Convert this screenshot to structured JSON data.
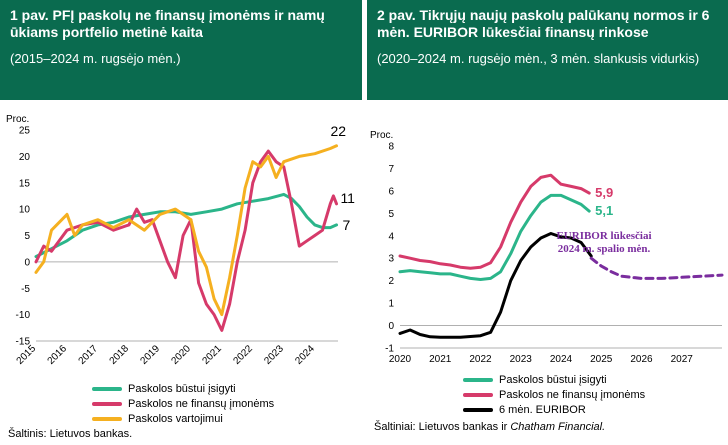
{
  "left_panel": {
    "title": "1 pav. PFĮ paskolų ne finansų įmonėms ir namų ūkiams portfelio metinė kaita",
    "subtitle": "(2015–2024 m. rugsėjo mėn.)",
    "source": "Šaltinis: Lietuvos bankas."
  },
  "right_panel": {
    "title": "2 pav. Tikrųjų naujų paskolų palūkanų normos ir 6 mėn. EURIBOR lūkesčiai finansų rinkose",
    "subtitle": "(2020–2024 m. rugsėjo mėn., 3 mėn. slankusis vidurkis)",
    "source_prefix": "Šaltiniai: Lietuvos bankas ir ",
    "source_italic": "Chatham Financial."
  },
  "chart_data": [
    {
      "type": "line",
      "ylabel": "Proc.",
      "ylim": [
        -15,
        25
      ],
      "yticks": [
        -15,
        -10,
        -5,
        0,
        5,
        10,
        15,
        20,
        25
      ],
      "xlim": [
        2015,
        2024.75
      ],
      "xticks": [
        2015,
        2016,
        2017,
        2018,
        2019,
        2020,
        2021,
        2022,
        2023,
        2024
      ],
      "series": [
        {
          "name": "Paskolos būstui įsigyti",
          "color": "#2bb58a",
          "end_label": "7",
          "x": [
            2015,
            2015.5,
            2016,
            2016.5,
            2017,
            2017.5,
            2018,
            2018.5,
            2019,
            2019.5,
            2020,
            2020.5,
            2021,
            2021.5,
            2022,
            2022.5,
            2023,
            2023.25,
            2023.5,
            2023.75,
            2024,
            2024.25,
            2024.5,
            2024.7
          ],
          "values": [
            1,
            2.5,
            4,
            6,
            7,
            7.5,
            8.5,
            9,
            9.5,
            9.5,
            9,
            9.5,
            10,
            11,
            11.5,
            12,
            12.8,
            12,
            10.5,
            8.5,
            7,
            6.5,
            6.5,
            7
          ]
        },
        {
          "name": "Paskolos ne finansų įmonėms",
          "color": "#d63a6a",
          "end_label": "11",
          "x": [
            2015,
            2015.25,
            2015.5,
            2015.75,
            2016,
            2016.5,
            2017,
            2017.5,
            2018,
            2018.25,
            2018.5,
            2018.75,
            2019,
            2019.25,
            2019.5,
            2019.75,
            2020,
            2020.25,
            2020.5,
            2020.75,
            2021,
            2021.25,
            2021.5,
            2021.75,
            2022,
            2022.25,
            2022.5,
            2022.75,
            2023,
            2023.25,
            2023.5,
            2023.75,
            2024,
            2024.25,
            2024.5,
            2024.6,
            2024.7
          ],
          "values": [
            0,
            3,
            2,
            4,
            6,
            7,
            7.5,
            6,
            7,
            10,
            7.5,
            8,
            4,
            0,
            -3,
            5,
            8,
            -4,
            -8,
            -10,
            -13,
            -8,
            0,
            6,
            15,
            19,
            21,
            19,
            18,
            11,
            3,
            4,
            5,
            6,
            11,
            12.5,
            11
          ]
        },
        {
          "name": "Paskolos vartojimui",
          "color": "#f5b020",
          "end_label": "22",
          "x": [
            2015,
            2015.25,
            2015.5,
            2016,
            2016.25,
            2016.5,
            2017,
            2017.5,
            2018,
            2018.5,
            2019,
            2019.5,
            2020,
            2020.25,
            2020.5,
            2020.75,
            2021,
            2021.25,
            2021.5,
            2021.75,
            2022,
            2022.25,
            2022.5,
            2022.75,
            2023,
            2023.5,
            2024,
            2024.5,
            2024.7
          ],
          "values": [
            -2,
            0,
            6,
            9,
            5,
            7,
            8,
            6.5,
            8,
            6,
            9,
            10,
            8,
            2,
            -1,
            -7,
            -10,
            -3,
            5,
            14,
            19,
            18,
            20,
            16,
            19,
            20,
            20.5,
            21.5,
            22
          ]
        }
      ]
    },
    {
      "type": "line",
      "ylabel": "Proc.",
      "ylim": [
        -1,
        8
      ],
      "yticks": [
        -1,
        0,
        1,
        2,
        3,
        4,
        5,
        6,
        7,
        8
      ],
      "xlim": [
        2020,
        2028
      ],
      "xticks": [
        2020,
        2021,
        2022,
        2023,
        2024,
        2025,
        2026,
        2027
      ],
      "annotation": "EURIBOR lūkesčiai 2024 m. spalio mėn.",
      "series": [
        {
          "name": "Paskolos būstui įsigyti",
          "color": "#2bb58a",
          "end_label": "5,1",
          "x": [
            2020,
            2020.25,
            2020.5,
            2020.75,
            2021,
            2021.25,
            2021.5,
            2021.75,
            2022,
            2022.25,
            2022.5,
            2022.75,
            2023,
            2023.25,
            2023.5,
            2023.75,
            2024,
            2024.25,
            2024.5,
            2024.7
          ],
          "values": [
            2.4,
            2.45,
            2.4,
            2.35,
            2.3,
            2.3,
            2.2,
            2.1,
            2.05,
            2.1,
            2.4,
            3.2,
            4.2,
            4.9,
            5.5,
            5.8,
            5.8,
            5.6,
            5.4,
            5.1
          ]
        },
        {
          "name": "Paskolos ne finansų įmonėms",
          "color": "#d63a6a",
          "end_label": "5,9",
          "x": [
            2020,
            2020.25,
            2020.5,
            2020.75,
            2021,
            2021.25,
            2021.5,
            2021.75,
            2022,
            2022.25,
            2022.5,
            2022.75,
            2023,
            2023.25,
            2023.5,
            2023.75,
            2024,
            2024.25,
            2024.5,
            2024.7
          ],
          "values": [
            3.1,
            3.0,
            2.9,
            2.85,
            2.75,
            2.7,
            2.6,
            2.55,
            2.6,
            2.8,
            3.5,
            4.6,
            5.5,
            6.2,
            6.6,
            6.7,
            6.3,
            6.2,
            6.1,
            5.9
          ]
        },
        {
          "name": "6 mėn. EURIBOR",
          "color": "#000000",
          "end_label": "",
          "x": [
            2020,
            2020.25,
            2020.5,
            2020.75,
            2021,
            2021.5,
            2022,
            2022.25,
            2022.5,
            2022.75,
            2023,
            2023.25,
            2023.5,
            2023.75,
            2024,
            2024.25,
            2024.5,
            2024.75
          ],
          "values": [
            -0.35,
            -0.2,
            -0.4,
            -0.5,
            -0.52,
            -0.52,
            -0.45,
            -0.3,
            0.6,
            2.0,
            2.9,
            3.5,
            3.9,
            4.1,
            3.95,
            3.9,
            3.7,
            3.1
          ]
        },
        {
          "name": "EURIBOR lūkesčiai",
          "color": "#7a2d9e",
          "dashed": true,
          "x": [
            2024.75,
            2025,
            2025.25,
            2025.5,
            2026,
            2026.5,
            2027,
            2027.5,
            2028
          ],
          "values": [
            3.0,
            2.65,
            2.4,
            2.2,
            2.1,
            2.1,
            2.15,
            2.2,
            2.25
          ]
        }
      ]
    }
  ]
}
